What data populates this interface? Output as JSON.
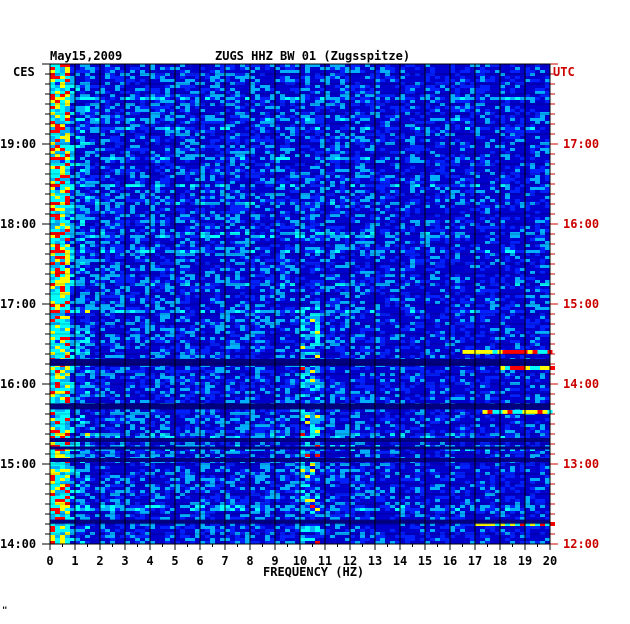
{
  "header": {
    "date": "May15,2009",
    "station": "ZUGS HHZ BW 01 (Zugsspitze)",
    "left_zone": "CES",
    "right_zone": "UTC"
  },
  "chart_data": {
    "type": "heatmap",
    "xlabel": "FREQUENCY (HZ)",
    "xlim": [
      0,
      20
    ],
    "x_ticks": [
      "0",
      "1",
      "2",
      "3",
      "4",
      "5",
      "6",
      "7",
      "8",
      "9",
      "10",
      "11",
      "12",
      "13",
      "14",
      "15",
      "16",
      "17",
      "18",
      "19",
      "20"
    ],
    "left_time_ticks": [
      "14:00",
      "15:00",
      "16:00",
      "17:00",
      "18:00",
      "19:00"
    ],
    "right_time_ticks": [
      "12:00",
      "13:00",
      "14:00",
      "15:00",
      "16:00",
      "17:00"
    ],
    "time_range_cest": [
      "14:00",
      "19:50"
    ],
    "colors": {
      "background": "#0000cc",
      "low": "#0020ff",
      "mid": "#00b0ff",
      "high": "#ffff00",
      "peak": "#ff0000",
      "gridline": "#000000"
    },
    "notable_features": [
      {
        "frequency_hz": [
          0,
          0.7
        ],
        "level": "high",
        "span": "entire record"
      },
      {
        "frequency_hz": [
          10,
          10.7
        ],
        "level": "high",
        "span": "14:00-17:00"
      },
      {
        "frequency_hz": [
          17,
          20
        ],
        "level": "peak",
        "span": "14:20, 15:40, 16:40"
      }
    ]
  },
  "footer": {
    "mark": "\""
  }
}
